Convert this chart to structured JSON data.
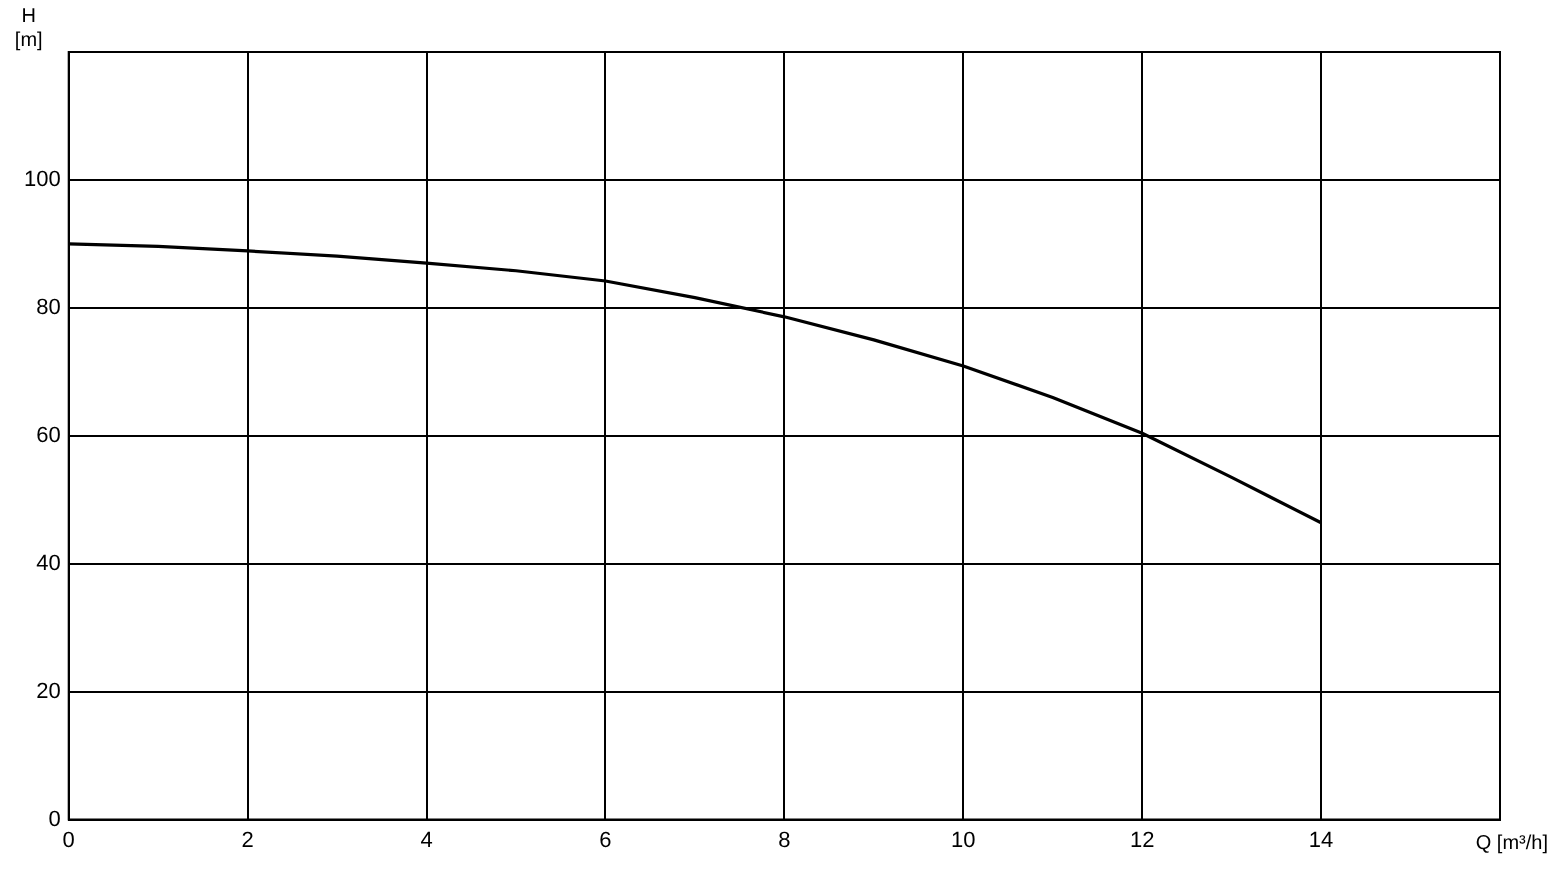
{
  "chart_data": {
    "type": "line",
    "xlabel": "Q [m³/h]",
    "ylabel": "H [m]",
    "x": [
      0,
      1,
      2,
      3,
      4,
      5,
      6,
      7,
      8,
      9,
      10,
      11,
      12,
      13,
      14
    ],
    "series": [
      {
        "color": "#000000",
        "values": [
          90,
          89.6,
          88.9,
          88.1,
          87,
          85.8,
          84.2,
          81.6,
          78.6,
          75,
          70.9,
          66,
          60.4,
          53.5,
          46.4
        ]
      }
    ],
    "xlim": [
      0,
      16
    ],
    "xticks": [
      0,
      2,
      4,
      6,
      8,
      10,
      12,
      14
    ],
    "ylim": [
      0,
      120
    ],
    "yticks": [
      0,
      20,
      40,
      60,
      80,
      100
    ],
    "grid": true,
    "legend": false,
    "marker": "none",
    "line_style": "solid"
  }
}
